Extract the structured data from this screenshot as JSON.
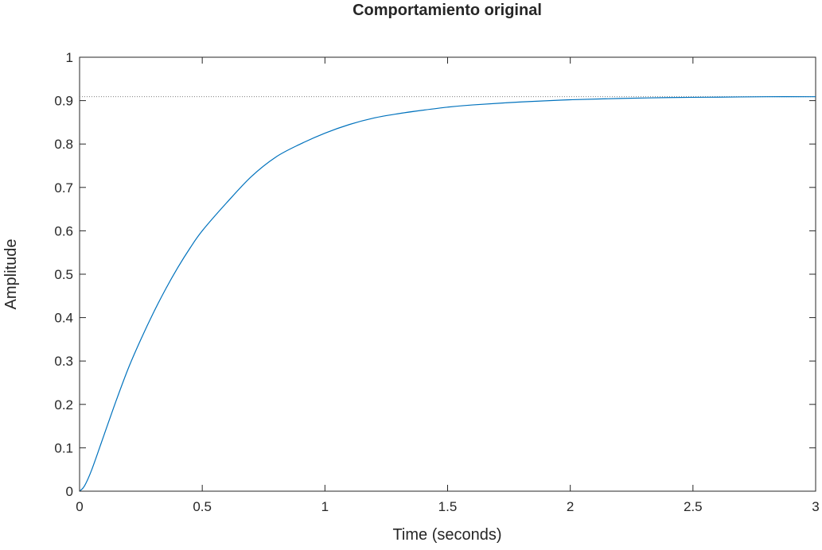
{
  "chart_data": {
    "type": "line",
    "title": "Comportamiento original",
    "xlabel": "Time (seconds)",
    "ylabel": "Amplitude",
    "xlim": [
      0,
      3
    ],
    "ylim": [
      0,
      1
    ],
    "xticks": [
      0,
      0.5,
      1,
      1.5,
      2,
      2.5,
      3
    ],
    "xtick_labels": [
      "0",
      "0.5",
      "1",
      "1.5",
      "2",
      "2.5",
      "3"
    ],
    "yticks": [
      0,
      0.1,
      0.2,
      0.3,
      0.4,
      0.5,
      0.6,
      0.7,
      0.8,
      0.9,
      1
    ],
    "ytick_labels": [
      "0",
      "0.1",
      "0.2",
      "0.3",
      "0.4",
      "0.5",
      "0.6",
      "0.7",
      "0.8",
      "0.9",
      "1"
    ],
    "grid": false,
    "series": [
      {
        "color": "#0072BD",
        "x": [
          0,
          0.02,
          0.05,
          0.1,
          0.15,
          0.2,
          0.25,
          0.3,
          0.35,
          0.4,
          0.45,
          0.5,
          0.6,
          0.7,
          0.8,
          0.9,
          1.0,
          1.1,
          1.2,
          1.3,
          1.4,
          1.5,
          1.6,
          1.8,
          2.0,
          2.2,
          2.4,
          2.6,
          2.8,
          3.0
        ],
        "y": [
          0,
          0.012,
          0.05,
          0.13,
          0.21,
          0.285,
          0.35,
          0.41,
          0.465,
          0.515,
          0.56,
          0.6,
          0.665,
          0.725,
          0.77,
          0.8,
          0.825,
          0.845,
          0.86,
          0.87,
          0.878,
          0.885,
          0.89,
          0.897,
          0.902,
          0.905,
          0.907,
          0.908,
          0.909,
          0.909
        ]
      }
    ],
    "reference_line": {
      "y": 0.909,
      "style": "dotted",
      "color": "#7f7f7f"
    }
  }
}
